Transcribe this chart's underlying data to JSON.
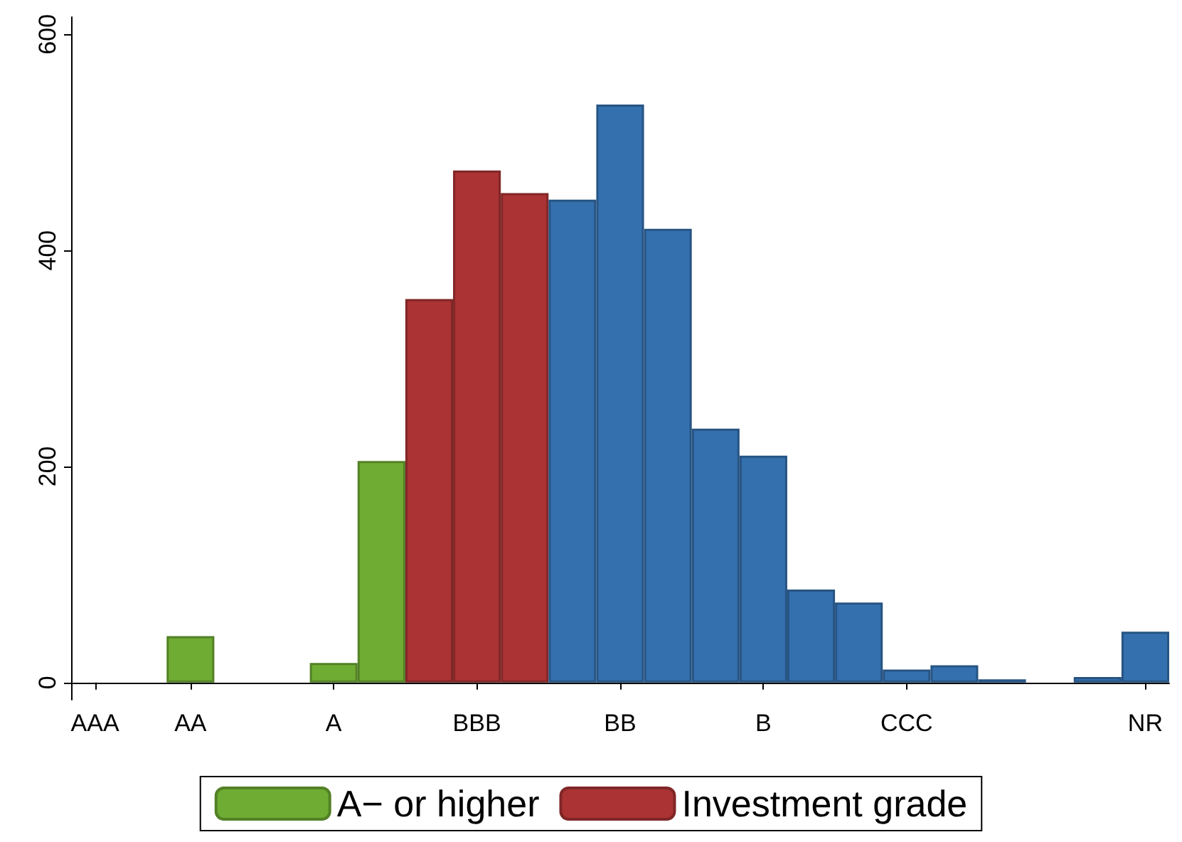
{
  "chart_data": {
    "type": "bar",
    "ylim": [
      -16,
      616
    ],
    "yticks": [
      0,
      200,
      400,
      600
    ],
    "categories": [
      "AAA",
      null,
      "AA",
      null,
      null,
      "A",
      null,
      null,
      "BBB",
      null,
      null,
      "BB",
      null,
      null,
      "B",
      null,
      null,
      "CCC",
      null,
      null,
      null,
      null,
      "NR"
    ],
    "series": [
      {
        "name": "A− or higher",
        "color": "#6fac33",
        "values": [
          null,
          null,
          43,
          null,
          null,
          18,
          205,
          null,
          null,
          null,
          null,
          null,
          null,
          null,
          null,
          null,
          null,
          null,
          null,
          null,
          null,
          null,
          null
        ]
      },
      {
        "name": "Investment grade",
        "color": "#ab3334",
        "values": [
          null,
          null,
          null,
          null,
          null,
          null,
          null,
          355,
          474,
          453,
          null,
          null,
          null,
          null,
          null,
          null,
          null,
          null,
          null,
          null,
          null,
          null,
          null
        ]
      },
      {
        "color": "#3470ae",
        "values": [
          null,
          null,
          null,
          null,
          null,
          null,
          null,
          null,
          null,
          null,
          447,
          535,
          420,
          235,
          210,
          86,
          74,
          12,
          16,
          3,
          null,
          5,
          47
        ]
      }
    ],
    "legend": "bottom",
    "grid": false
  }
}
